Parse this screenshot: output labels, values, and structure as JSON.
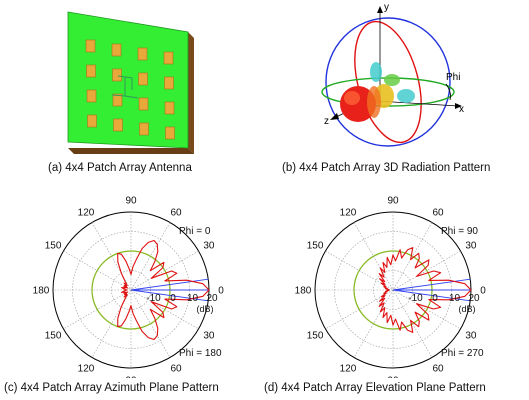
{
  "figure": {
    "captions": {
      "a": "(a) 4x4 Patch Array Antenna",
      "b": "(b) 4x4 Patch Array 3D Radiation Pattern",
      "c": "(c) 4x4 Patch Array Azimuth Plane Pattern",
      "d": "(d) 4x4 Patch Array Elevation Plane Pattern"
    },
    "axes3d": {
      "x": "x",
      "y": "y",
      "z": "z",
      "phi": "Phi"
    },
    "colors": {
      "substrate": "#33ee33",
      "substrate_edge": "#7a4a1a",
      "patch": "#e8a93a",
      "pattern": "#e01010",
      "zero_ring": "#88bb22",
      "blue_line": "#3344ee",
      "grid": "#999999"
    }
  },
  "chart_data": [
    {
      "type": "polar",
      "id": "azimuth",
      "angle_labels": [
        {
          "deg": 90,
          "text": "90"
        },
        {
          "deg": 60,
          "text": "60"
        },
        {
          "deg": 30,
          "text": "30"
        },
        {
          "deg": 0,
          "text": "0"
        },
        {
          "deg": 120,
          "text": "120"
        },
        {
          "deg": 150,
          "text": "150"
        },
        {
          "deg": 180,
          "text": "180"
        },
        {
          "deg": 210,
          "text": "150"
        },
        {
          "deg": 240,
          "text": "120"
        },
        {
          "deg": 270,
          "text": "90"
        },
        {
          "deg": 300,
          "text": "60"
        },
        {
          "deg": 330,
          "text": "30"
        }
      ],
      "radial_ticks": [
        "-10",
        "0",
        "10",
        "20"
      ],
      "radial_unit": "(dB)",
      "rlim": [
        -20,
        20
      ],
      "phi_top": "Phi = 0",
      "phi_bottom": "Phi = 180",
      "series": [
        {
          "angles": [
            0,
            5,
            10,
            15,
            20,
            25,
            30,
            35,
            40,
            45,
            50,
            55,
            60,
            65,
            70,
            75,
            80,
            85,
            90,
            95,
            100,
            105,
            110,
            115,
            120,
            125,
            130,
            135,
            140,
            145,
            150,
            155,
            160,
            165,
            170,
            175,
            180,
            185,
            190,
            195,
            200,
            205,
            210,
            215,
            220,
            225,
            230,
            235,
            240,
            245,
            250,
            255,
            260,
            265,
            270,
            275,
            280,
            285,
            290,
            295,
            300,
            305,
            310,
            315,
            320,
            325,
            330,
            335,
            340,
            345,
            350,
            355,
            360
          ],
          "values": [
            20,
            17,
            9,
            -2,
            5,
            3,
            -8,
            0,
            2,
            -6,
            -1,
            4,
            7,
            8,
            6,
            2,
            -4,
            -8,
            -12,
            -9,
            -5,
            -1,
            0,
            -4,
            -10,
            -15,
            -17,
            -15,
            -17,
            -16,
            -18,
            -16,
            -17,
            -15,
            -16,
            -17,
            -18,
            -17,
            -16,
            -15,
            -17,
            -16,
            -18,
            -16,
            -17,
            -15,
            -17,
            -15,
            -10,
            -4,
            0,
            -1,
            -5,
            -9,
            -12,
            -8,
            -4,
            2,
            6,
            8,
            7,
            4,
            -1,
            -6,
            2,
            0,
            -8,
            3,
            5,
            -2,
            9,
            17,
            20
          ]
        }
      ]
    },
    {
      "type": "polar",
      "id": "elevation",
      "angle_labels": [
        {
          "deg": 90,
          "text": "90"
        },
        {
          "deg": 60,
          "text": "60"
        },
        {
          "deg": 30,
          "text": "30"
        },
        {
          "deg": 0,
          "text": "0"
        },
        {
          "deg": 120,
          "text": "120"
        },
        {
          "deg": 150,
          "text": "150"
        },
        {
          "deg": 180,
          "text": "180"
        },
        {
          "deg": 210,
          "text": "150"
        },
        {
          "deg": 240,
          "text": "120"
        },
        {
          "deg": 270,
          "text": "90"
        },
        {
          "deg": 300,
          "text": "60"
        },
        {
          "deg": 330,
          "text": "30"
        }
      ],
      "radial_ticks": [
        "-10",
        "0",
        "10",
        "20"
      ],
      "radial_unit": "(dB)",
      "rlim": [
        -20,
        20
      ],
      "phi_top": "Phi = 90",
      "phi_bottom": "Phi = 270",
      "series": [
        {
          "angles": [
            0,
            5,
            10,
            15,
            20,
            25,
            30,
            35,
            40,
            45,
            50,
            55,
            60,
            65,
            70,
            75,
            80,
            85,
            90,
            95,
            100,
            105,
            110,
            115,
            120,
            125,
            130,
            135,
            140,
            145,
            150,
            155,
            160,
            165,
            170,
            175,
            180,
            185,
            190,
            195,
            200,
            205,
            210,
            215,
            220,
            225,
            230,
            235,
            240,
            245,
            250,
            255,
            260,
            265,
            270,
            275,
            280,
            285,
            290,
            295,
            300,
            305,
            310,
            315,
            320,
            325,
            330,
            335,
            340,
            345,
            350,
            355,
            360
          ],
          "values": [
            20,
            17,
            9,
            -1,
            6,
            3,
            -6,
            2,
            4,
            -4,
            1,
            3,
            -2,
            4,
            2,
            -3,
            1,
            -5,
            -2,
            -7,
            -3,
            -8,
            -5,
            -10,
            -7,
            -12,
            -9,
            -14,
            -11,
            -15,
            -13,
            -16,
            -15,
            -17,
            -16,
            -18,
            -17,
            -18,
            -16,
            -17,
            -15,
            -16,
            -13,
            -15,
            -11,
            -14,
            -9,
            -12,
            -7,
            -10,
            -5,
            -8,
            -3,
            -7,
            -2,
            -5,
            1,
            -3,
            2,
            4,
            -2,
            3,
            1,
            -4,
            4,
            2,
            -6,
            3,
            6,
            -1,
            9,
            17,
            20
          ]
        }
      ]
    }
  ]
}
